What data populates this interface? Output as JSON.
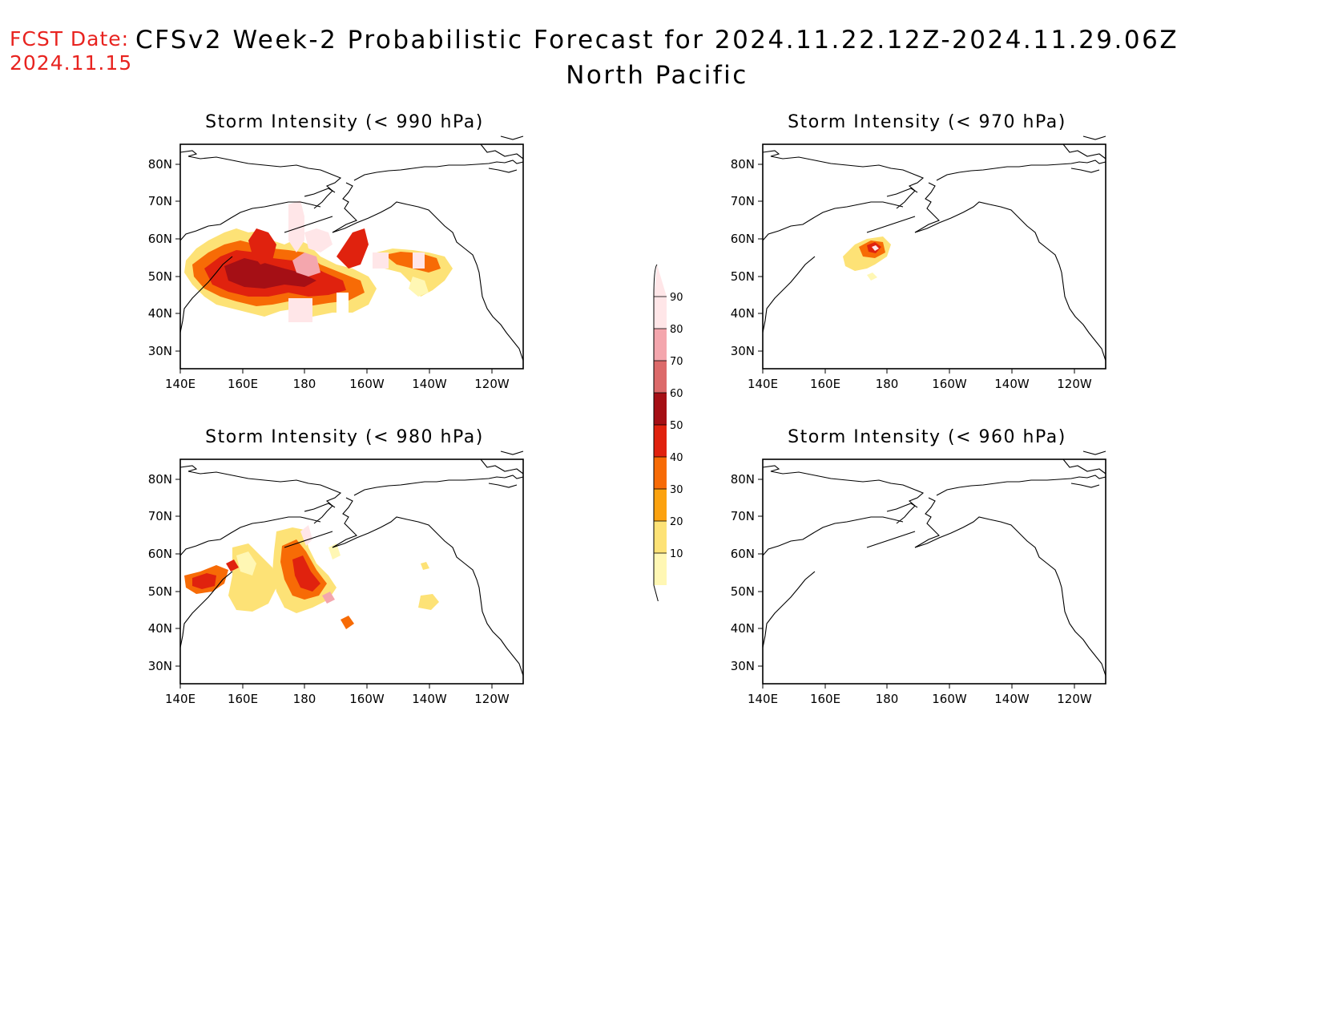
{
  "header": {
    "fcst_label": "FCST Date:",
    "fcst_date": "2024.11.15",
    "title": "CFSv2 Week-2 Probabilistic Forecast for 2024.11.22.12Z-2024.11.29.06Z",
    "subtitle": "North Pacific"
  },
  "axes": {
    "lon_ticks": [
      "140E",
      "160E",
      "180",
      "160W",
      "140W",
      "120W"
    ],
    "lat_ticks": [
      "80N",
      "70N",
      "60N",
      "50N",
      "40N",
      "30N"
    ]
  },
  "panels": [
    {
      "id": "p990",
      "title": "Storm Intensity (< 990 hPa)"
    },
    {
      "id": "p970",
      "title": "Storm Intensity (< 970 hPa)"
    },
    {
      "id": "p980",
      "title": "Storm Intensity (< 980 hPa)"
    },
    {
      "id": "p960",
      "title": "Storm Intensity (< 960 hPa)"
    }
  ],
  "colorbar": {
    "levels": [
      "90",
      "80",
      "70",
      "60",
      "50",
      "40",
      "30",
      "20",
      "10"
    ],
    "colors": [
      "#ffe6e8",
      "#f4a6ad",
      "#dc6a6a",
      "#a50f15",
      "#e0220e",
      "#f76b06",
      "#fca20f",
      "#fde276",
      "#fff7b4"
    ]
  }
}
